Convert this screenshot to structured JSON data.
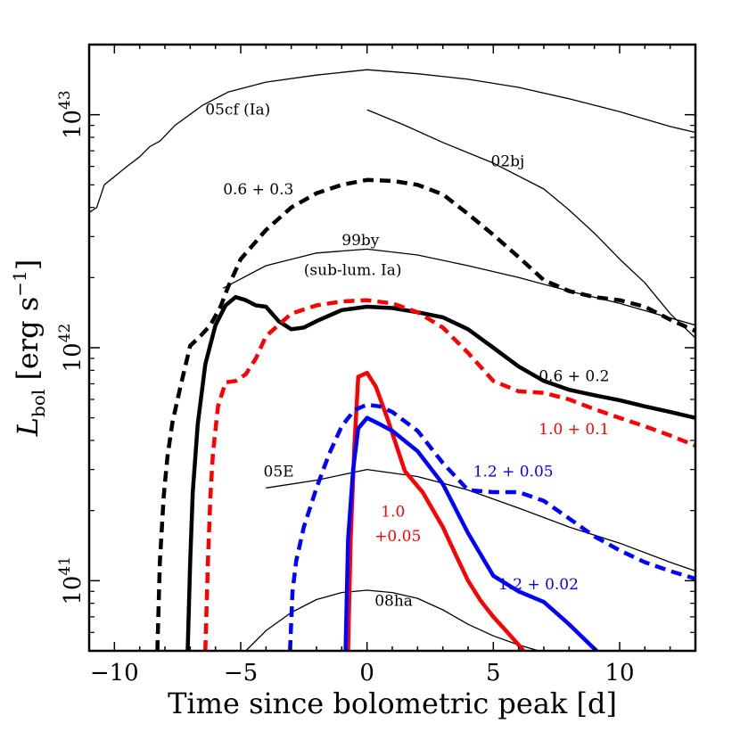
{
  "chart_data": {
    "type": "line",
    "title": "",
    "xlabel": "Time since bolometric peak [d]",
    "ylabel": "L_bol [erg s^-1]",
    "ylabel_main": "L",
    "ylabel_sub": "bol",
    "ylabel_units": " [erg s",
    "ylabel_exp": "−1",
    "ylabel_close": "]",
    "xlim": [
      -11,
      13
    ],
    "ylim": [
      5e+40,
      2e+43
    ],
    "yscale": "log",
    "grid": false,
    "xticks": [
      {
        "value": -10,
        "label": "−10"
      },
      {
        "value": -5,
        "label": "−5"
      },
      {
        "value": 0,
        "label": "0"
      },
      {
        "value": 5,
        "label": "5"
      },
      {
        "value": 10,
        "label": "10"
      }
    ],
    "yticks": [
      {
        "value": 1e+41,
        "base": "10",
        "exp": "41"
      },
      {
        "value": 1e+42,
        "base": "10",
        "exp": "42"
      },
      {
        "value": 1e+43,
        "base": "10",
        "exp": "43"
      }
    ],
    "series": [
      {
        "id": "05cf",
        "color": "#000000",
        "width": 1.3,
        "dash": "none",
        "points": [
          [
            -11,
            3.8e+42
          ],
          [
            -10.7,
            4e+42
          ],
          [
            -10.4,
            5e+42
          ],
          [
            -9.5,
            6e+42
          ],
          [
            -9,
            6.6e+42
          ],
          [
            -8.6,
            7.3e+42
          ],
          [
            -8.2,
            7.7e+42
          ],
          [
            -7.6,
            9e+42
          ],
          [
            -6.5,
            1.1e+43
          ],
          [
            -5.5,
            1.25e+43
          ],
          [
            -4,
            1.38e+43
          ],
          [
            -2,
            1.48e+43
          ],
          [
            0,
            1.56e+43
          ],
          [
            2,
            1.5e+43
          ],
          [
            4,
            1.42e+43
          ],
          [
            6,
            1.31e+43
          ],
          [
            8,
            1.17e+43
          ],
          [
            10,
            1.03e+43
          ],
          [
            12,
            8.9e+42
          ],
          [
            13,
            8.4e+42
          ]
        ]
      },
      {
        "id": "02bj",
        "color": "#000000",
        "width": 1.3,
        "dash": "none",
        "points": [
          [
            0,
            1.05e+43
          ],
          [
            1.5,
            9e+42
          ],
          [
            3,
            7.6e+42
          ],
          [
            5,
            6.2e+42
          ],
          [
            7,
            4.8e+42
          ],
          [
            8,
            3.9e+42
          ],
          [
            9,
            3.1e+42
          ],
          [
            10,
            2.4e+42
          ],
          [
            11,
            1.9e+42
          ],
          [
            12,
            1.4e+42
          ],
          [
            13,
            1.1e+42
          ]
        ]
      },
      {
        "id": "99by",
        "color": "#000000",
        "width": 1.3,
        "dash": "none",
        "points": [
          [
            -5.7,
            1.8e+42
          ],
          [
            -4,
            2.25e+42
          ],
          [
            -2,
            2.55e+42
          ],
          [
            0,
            2.65e+42
          ],
          [
            2,
            2.5e+42
          ],
          [
            4,
            2.25e+42
          ],
          [
            6,
            2e+42
          ],
          [
            8,
            1.75e+42
          ],
          [
            10,
            1.55e+42
          ],
          [
            13,
            1.25e+42
          ]
        ]
      },
      {
        "id": "05E",
        "color": "#000000",
        "width": 1.3,
        "dash": "none",
        "points": [
          [
            -4,
            2.5e+41
          ],
          [
            -2,
            2.7e+41
          ],
          [
            0,
            3e+41
          ],
          [
            2,
            2.8e+41
          ],
          [
            4,
            2.45e+41
          ],
          [
            6,
            2.05e+41
          ],
          [
            8,
            1.7e+41
          ],
          [
            10,
            1.45e+41
          ],
          [
            12,
            1.2e+41
          ],
          [
            13,
            1.1e+41
          ]
        ]
      },
      {
        "id": "08ha",
        "color": "#000000",
        "width": 1.3,
        "dash": "none",
        "points": [
          [
            -4.8,
            5e+40
          ],
          [
            -4,
            6.1e+40
          ],
          [
            -3,
            7.3e+40
          ],
          [
            -2,
            8.3e+40
          ],
          [
            -1,
            8.9e+40
          ],
          [
            0,
            9.1e+40
          ],
          [
            1,
            8.9e+40
          ],
          [
            2,
            8.4e+40
          ],
          [
            3,
            7.5e+40
          ],
          [
            4,
            6.5e+40
          ],
          [
            5,
            5.8e+40
          ],
          [
            6,
            5.3e+40
          ],
          [
            6.8,
            5e+40
          ]
        ]
      },
      {
        "id": "0.6+0.3",
        "color": "#000000",
        "width": 4.5,
        "dash": "12,7",
        "points": [
          [
            -8.3,
            5e+40
          ],
          [
            -8.2,
            1.2e+41
          ],
          [
            -8.05,
            2.3e+41
          ],
          [
            -7.9,
            3.4e+41
          ],
          [
            -7.7,
            4.8e+41
          ],
          [
            -7.4,
            6.7e+41
          ],
          [
            -7.0,
            1.02e+42
          ],
          [
            -6.6,
            1.12e+42
          ],
          [
            -6.2,
            1.25e+42
          ],
          [
            -5.8,
            1.5e+42
          ],
          [
            -5.5,
            1.82e+42
          ],
          [
            -5,
            2.4e+42
          ],
          [
            -4,
            3.2e+42
          ],
          [
            -3,
            4e+42
          ],
          [
            -2,
            4.6e+42
          ],
          [
            -1,
            5e+42
          ],
          [
            0,
            5.25e+42
          ],
          [
            1,
            5.2e+42
          ],
          [
            2,
            5e+42
          ],
          [
            3,
            4.55e+42
          ],
          [
            4,
            3.75e+42
          ],
          [
            5,
            3.05e+42
          ],
          [
            6,
            2.45e+42
          ],
          [
            7,
            1.95e+42
          ],
          [
            8,
            1.75e+42
          ],
          [
            9,
            1.65e+42
          ],
          [
            10,
            1.6e+42
          ],
          [
            11,
            1.5e+42
          ],
          [
            12,
            1.32e+42
          ],
          [
            13,
            1.18e+42
          ]
        ]
      },
      {
        "id": "0.6+0.2",
        "color": "#000000",
        "width": 4.5,
        "dash": "none",
        "points": [
          [
            -7.1,
            5e+40
          ],
          [
            -7.0,
            1.2e+41
          ],
          [
            -6.9,
            2.4e+41
          ],
          [
            -6.7,
            4.7e+41
          ],
          [
            -6.4,
            8.5e+41
          ],
          [
            -6.0,
            1.25e+42
          ],
          [
            -5.6,
            1.52e+42
          ],
          [
            -5.2,
            1.65e+42
          ],
          [
            -4.8,
            1.6e+42
          ],
          [
            -4.4,
            1.52e+42
          ],
          [
            -4,
            1.5e+42
          ],
          [
            -3.5,
            1.3e+42
          ],
          [
            -3,
            1.2e+42
          ],
          [
            -2.5,
            1.22e+42
          ],
          [
            -2,
            1.3e+42
          ],
          [
            -1,
            1.45e+42
          ],
          [
            0,
            1.5e+42
          ],
          [
            1,
            1.48e+42
          ],
          [
            2,
            1.42e+42
          ],
          [
            3,
            1.35e+42
          ],
          [
            4,
            1.2e+42
          ],
          [
            5,
            1e+42
          ],
          [
            6,
            8.3e+41
          ],
          [
            7,
            7.2e+41
          ],
          [
            8,
            6.6e+41
          ],
          [
            9,
            6.25e+41
          ],
          [
            10,
            5.95e+41
          ],
          [
            11,
            5.6e+41
          ],
          [
            12,
            5.3e+41
          ],
          [
            13,
            5e+41
          ]
        ]
      },
      {
        "id": "1.0+0.1",
        "color": "#ff0000",
        "width": 4.5,
        "dash": "12,7",
        "points": [
          [
            -6.4,
            5e+40
          ],
          [
            -6.3,
            1.2e+41
          ],
          [
            -6.2,
            2.3e+41
          ],
          [
            -6.1,
            3.5e+41
          ],
          [
            -5.9,
            5.6e+41
          ],
          [
            -5.6,
            7.1e+41
          ],
          [
            -5.2,
            7.2e+41
          ],
          [
            -4.8,
            7.7e+41
          ],
          [
            -4.4,
            9e+41
          ],
          [
            -4,
            1.12e+42
          ],
          [
            -3,
            1.4e+42
          ],
          [
            -2,
            1.52e+42
          ],
          [
            -1,
            1.58e+42
          ],
          [
            0,
            1.6e+42
          ],
          [
            1,
            1.55e+42
          ],
          [
            2,
            1.42e+42
          ],
          [
            3,
            1.22e+42
          ],
          [
            4,
            9.5e+41
          ],
          [
            5,
            7.2e+41
          ],
          [
            6,
            6.5e+41
          ],
          [
            7,
            6.4e+41
          ],
          [
            8,
            6e+41
          ],
          [
            9,
            5.45e+41
          ],
          [
            10,
            5e+41
          ],
          [
            11,
            4.6e+41
          ],
          [
            12,
            4.2e+41
          ],
          [
            13,
            3.8e+41
          ]
        ]
      },
      {
        "id": "1.0+0.05",
        "color": "#ff0000",
        "width": 4.5,
        "dash": "none",
        "points": [
          [
            -0.75,
            5e+40
          ],
          [
            -0.65,
            1.5e+41
          ],
          [
            -0.5,
            3.8e+41
          ],
          [
            -0.35,
            7.5e+41
          ],
          [
            0,
            7.8e+41
          ],
          [
            0.35,
            6.8e+41
          ],
          [
            0.8,
            5e+41
          ],
          [
            1.5,
            2.95e+41
          ],
          [
            2.2,
            2.4e+41
          ],
          [
            3,
            1.7e+41
          ],
          [
            3.5,
            1.3e+41
          ],
          [
            4,
            1e+41
          ],
          [
            4.5,
            8.2e+40
          ],
          [
            5,
            7e+40
          ],
          [
            5.5,
            6.1e+40
          ],
          [
            6,
            5.3e+40
          ],
          [
            6.2,
            5e+40
          ]
        ]
      },
      {
        "id": "1.2+0.05",
        "color": "#0000ff",
        "width": 4.5,
        "dash": "12,7",
        "points": [
          [
            -3.05,
            5e+40
          ],
          [
            -2.95,
            9e+40
          ],
          [
            -2.8,
            1.22e+41
          ],
          [
            -2.5,
            1.7e+41
          ],
          [
            -2,
            2.5e+41
          ],
          [
            -1.5,
            3.5e+41
          ],
          [
            -1,
            4.6e+41
          ],
          [
            -0.5,
            5.4e+41
          ],
          [
            0,
            5.7e+41
          ],
          [
            0.5,
            5.6e+41
          ],
          [
            1,
            5.3e+41
          ],
          [
            2,
            4.4e+41
          ],
          [
            3,
            3.2e+41
          ],
          [
            4,
            2.45e+41
          ],
          [
            5,
            2.4e+41
          ],
          [
            6,
            2.4e+41
          ],
          [
            7,
            2.2e+41
          ],
          [
            8,
            1.85e+41
          ],
          [
            9,
            1.55e+41
          ],
          [
            10,
            1.35e+41
          ],
          [
            11,
            1.2e+41
          ],
          [
            12,
            1.1e+41
          ],
          [
            13,
            1.02e+41
          ]
        ]
      },
      {
        "id": "1.2+0.02",
        "color": "#0000ff",
        "width": 4.5,
        "dash": "none",
        "points": [
          [
            -0.85,
            5e+40
          ],
          [
            -0.75,
            1.5e+41
          ],
          [
            -0.55,
            3e+41
          ],
          [
            -0.35,
            4.5e+41
          ],
          [
            0,
            5e+41
          ],
          [
            0.5,
            4.7e+41
          ],
          [
            1,
            4.4e+41
          ],
          [
            2,
            3.6e+41
          ],
          [
            3,
            2.6e+41
          ],
          [
            4,
            1.6e+41
          ],
          [
            5,
            1.05e+41
          ],
          [
            6,
            9e+40
          ],
          [
            7,
            8.1e+40
          ],
          [
            8,
            6.5e+40
          ],
          [
            9,
            5.1e+40
          ],
          [
            9.1,
            5e+40
          ]
        ]
      }
    ],
    "annotations": [
      {
        "id": "05cf",
        "text": "05cf (Ia)",
        "x": -6.4,
        "y": 1e+43,
        "color": "#000000"
      },
      {
        "id": "02bj",
        "text": "02bj",
        "x": 4.9,
        "y": 6e+42,
        "color": "#000000"
      },
      {
        "id": "0.6+0.3",
        "text": "0.6 + 0.3",
        "x": -5.7,
        "y": 4.55e+42,
        "color": "#000000"
      },
      {
        "id": "99by-1",
        "text": "99by",
        "x": -1.0,
        "y": 2.75e+42,
        "color": "#000000"
      },
      {
        "id": "99by-2",
        "text": "(sub-lum. Ia)",
        "x": -2.5,
        "y": 2.05e+42,
        "color": "#000000"
      },
      {
        "id": "0.6+0.2",
        "text": "0.6 + 0.2",
        "x": 6.8,
        "y": 7.2e+41,
        "color": "#000000"
      },
      {
        "id": "1.0+0.1",
        "text": "1.0 + 0.1",
        "x": 6.8,
        "y": 4.25e+41,
        "color": "#ff0000"
      },
      {
        "id": "05E",
        "text": "05E",
        "x": -4.1,
        "y": 2.8e+41,
        "color": "#000000"
      },
      {
        "id": "1.2+0.05",
        "text": "1.2 + 0.05",
        "x": 4.2,
        "y": 2.8e+41,
        "color": "#0000ff"
      },
      {
        "id": "1.0-a",
        "text": "1.0",
        "x": 0.55,
        "y": 1.88e+41,
        "color": "#ff0000"
      },
      {
        "id": "1.0-b",
        "text": "+0.05",
        "x": 0.3,
        "y": 1.48e+41,
        "color": "#ff0000"
      },
      {
        "id": "1.2+0.02",
        "text": "1.2 + 0.02",
        "x": 5.2,
        "y": 9.2e+40,
        "color": "#0000ff"
      },
      {
        "id": "08ha",
        "text": "08ha",
        "x": 0.3,
        "y": 7.8e+40,
        "color": "#000000"
      }
    ]
  }
}
